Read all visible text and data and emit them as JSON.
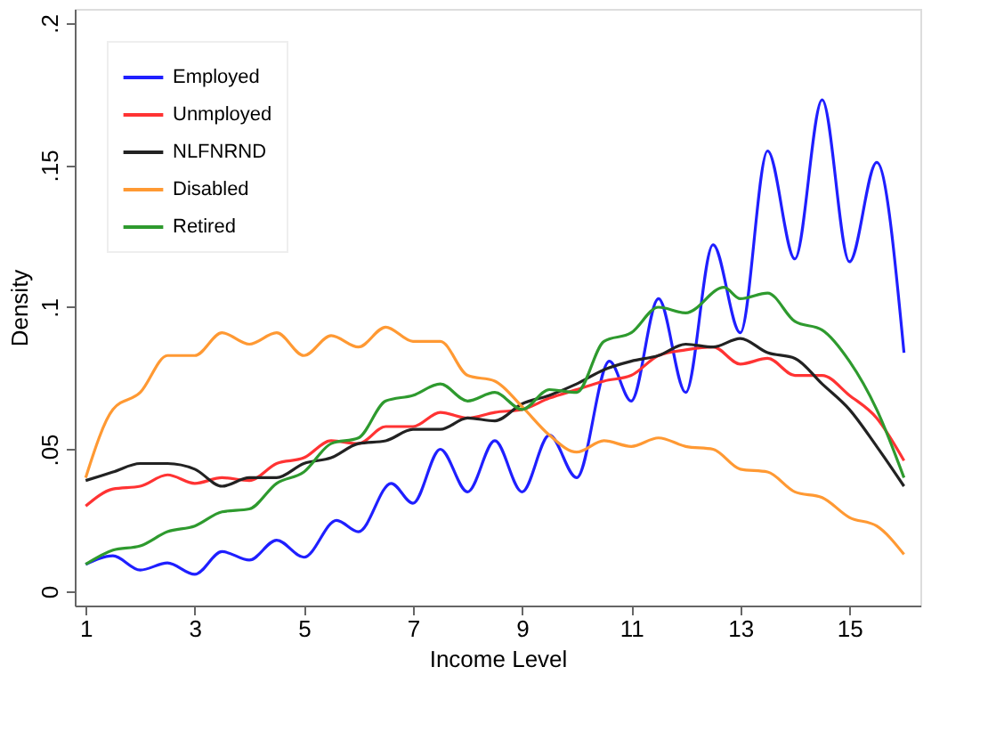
{
  "chart_data": {
    "type": "line",
    "xlabel": "Income Level",
    "ylabel": "Density",
    "xlim": [
      0.8,
      16.3
    ],
    "xticks": [
      1,
      3,
      5,
      7,
      9,
      11,
      13,
      15
    ],
    "ylim": [
      -0.005,
      0.205
    ],
    "yticks": [
      {
        "value": 0,
        "label": "0"
      },
      {
        "value": 0.05,
        "label": ".05"
      },
      {
        "value": 0.1,
        "label": ".1"
      },
      {
        "value": 0.15,
        "label": ".15"
      },
      {
        "value": 0.2,
        "label": ".2"
      }
    ],
    "grid": false,
    "legend": "top left",
    "marker": "none",
    "line_style": "solid",
    "series": [
      {
        "name": "Employed",
        "color": "#1f1fff",
        "x": [
          1,
          1.5,
          2,
          2.5,
          3,
          3.5,
          4,
          4.5,
          5,
          5.6,
          6,
          6.6,
          7,
          7.5,
          8,
          8.5,
          9,
          9.5,
          10,
          10.6,
          11,
          11.5,
          12,
          12.5,
          13,
          13.5,
          14,
          14.5,
          15,
          15.5,
          16
        ],
        "values": [
          0.0095,
          0.0125,
          0.0075,
          0.01,
          0.006,
          0.014,
          0.011,
          0.018,
          0.012,
          0.025,
          0.021,
          0.038,
          0.031,
          0.05,
          0.035,
          0.053,
          0.035,
          0.055,
          0.04,
          0.081,
          0.067,
          0.103,
          0.07,
          0.122,
          0.091,
          0.155,
          0.117,
          0.173,
          0.116,
          0.151,
          0.084
        ]
      },
      {
        "name": "Unmployed",
        "color": "#ff3333",
        "x": [
          1,
          1.5,
          2,
          2.5,
          3,
          3.5,
          4,
          4.5,
          5,
          5.5,
          6,
          6.5,
          7,
          7.5,
          8,
          8.5,
          9,
          9.5,
          10,
          10.5,
          11,
          11.5,
          12,
          12.5,
          13,
          13.5,
          14,
          14.5,
          15,
          15.5,
          16
        ],
        "values": [
          0.03,
          0.036,
          0.037,
          0.041,
          0.038,
          0.04,
          0.039,
          0.045,
          0.047,
          0.053,
          0.052,
          0.058,
          0.058,
          0.063,
          0.061,
          0.063,
          0.064,
          0.068,
          0.071,
          0.074,
          0.076,
          0.083,
          0.085,
          0.086,
          0.08,
          0.082,
          0.076,
          0.076,
          0.069,
          0.061,
          0.046
        ]
      },
      {
        "name": "NLFNRND",
        "color": "#222222",
        "x": [
          1,
          1.5,
          2,
          2.5,
          3,
          3.5,
          4,
          4.5,
          5,
          5.5,
          6,
          6.5,
          7,
          7.5,
          8,
          8.5,
          9,
          9.5,
          10,
          10.5,
          11,
          11.5,
          12,
          12.5,
          13,
          13.5,
          14,
          14.5,
          15,
          15.5,
          16
        ],
        "values": [
          0.039,
          0.042,
          0.045,
          0.045,
          0.043,
          0.037,
          0.04,
          0.04,
          0.045,
          0.047,
          0.052,
          0.053,
          0.057,
          0.057,
          0.061,
          0.06,
          0.066,
          0.069,
          0.073,
          0.078,
          0.081,
          0.083,
          0.087,
          0.086,
          0.089,
          0.084,
          0.082,
          0.073,
          0.064,
          0.051,
          0.037
        ]
      },
      {
        "name": "Disabled",
        "color": "#ff9933",
        "x": [
          1,
          1.5,
          2,
          2.5,
          3,
          3.5,
          4,
          4.5,
          5,
          5.5,
          6,
          6.5,
          7,
          7.5,
          8,
          8.5,
          9,
          9.5,
          10,
          10.5,
          11,
          11.5,
          12,
          12.5,
          13,
          13.5,
          14,
          14.5,
          15,
          15.5,
          16
        ],
        "values": [
          0.04,
          0.064,
          0.07,
          0.083,
          0.083,
          0.091,
          0.087,
          0.091,
          0.083,
          0.09,
          0.086,
          0.093,
          0.088,
          0.088,
          0.076,
          0.074,
          0.065,
          0.055,
          0.049,
          0.053,
          0.051,
          0.054,
          0.051,
          0.05,
          0.043,
          0.042,
          0.035,
          0.033,
          0.026,
          0.023,
          0.013
        ]
      },
      {
        "name": "Retired",
        "color": "#2e9a2e",
        "x": [
          1,
          1.5,
          2,
          2.5,
          3,
          3.5,
          4,
          4.5,
          5,
          5.5,
          6,
          6.5,
          7,
          7.5,
          8,
          8.5,
          9,
          9.5,
          10,
          10.5,
          11,
          11.5,
          12,
          12.7,
          13,
          13.5,
          14,
          14.5,
          15,
          15.5,
          16
        ],
        "values": [
          0.0095,
          0.0145,
          0.016,
          0.021,
          0.023,
          0.028,
          0.029,
          0.038,
          0.042,
          0.052,
          0.054,
          0.067,
          0.069,
          0.073,
          0.067,
          0.07,
          0.064,
          0.071,
          0.07,
          0.088,
          0.091,
          0.1,
          0.098,
          0.107,
          0.103,
          0.105,
          0.095,
          0.092,
          0.081,
          0.064,
          0.04
        ]
      }
    ]
  }
}
